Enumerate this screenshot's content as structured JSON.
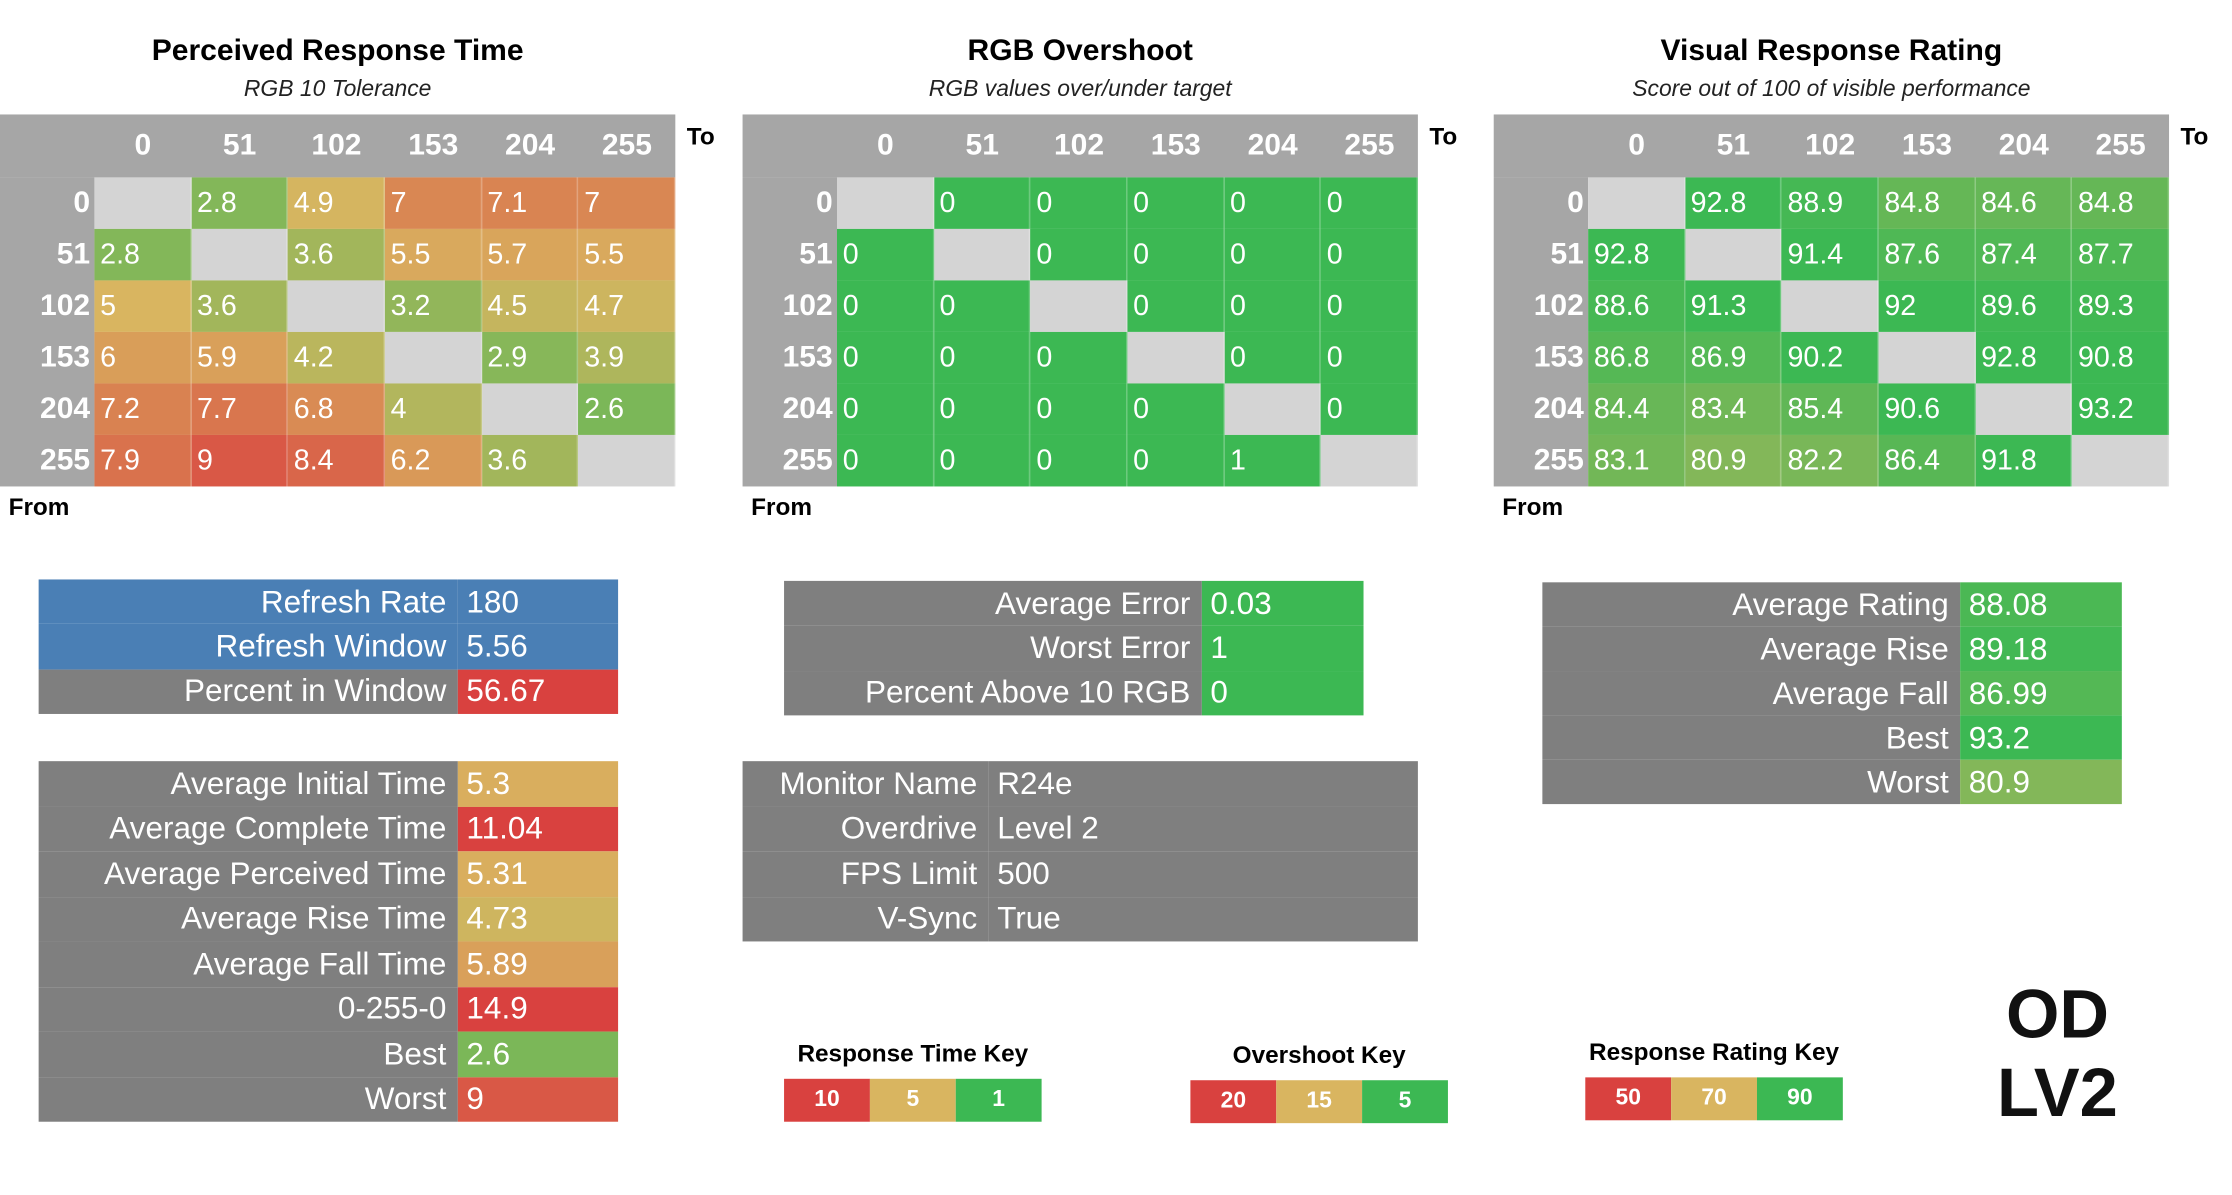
{
  "matrices": [
    {
      "title": "Perceived Response Time",
      "subtitle": "RGB 10 Tolerance",
      "to_label": "To",
      "from_label": "From",
      "columns": [
        0,
        51,
        102,
        153,
        204,
        255
      ],
      "rows": [
        {
          "label": 0,
          "cells": [
            null,
            2.8,
            4.9,
            7,
            7.1,
            7
          ]
        },
        {
          "label": 51,
          "cells": [
            2.8,
            null,
            3.6,
            5.5,
            5.7,
            5.5
          ]
        },
        {
          "label": 102,
          "cells": [
            5,
            3.6,
            null,
            3.2,
            4.5,
            4.7
          ]
        },
        {
          "label": 153,
          "cells": [
            6,
            5.9,
            4.2,
            null,
            2.9,
            3.9
          ]
        },
        {
          "label": 204,
          "cells": [
            7.2,
            7.7,
            6.8,
            4,
            null,
            2.6
          ]
        },
        {
          "label": 255,
          "cells": [
            7.9,
            9,
            8.4,
            6.2,
            3.6,
            null
          ]
        }
      ]
    },
    {
      "title": "RGB Overshoot",
      "subtitle": "RGB values over/under target",
      "to_label": "To",
      "from_label": "From",
      "columns": [
        0,
        51,
        102,
        153,
        204,
        255
      ],
      "rows": [
        {
          "label": 0,
          "cells": [
            null,
            0,
            0,
            0,
            0,
            0
          ]
        },
        {
          "label": 51,
          "cells": [
            0,
            null,
            0,
            0,
            0,
            0
          ]
        },
        {
          "label": 102,
          "cells": [
            0,
            0,
            null,
            0,
            0,
            0
          ]
        },
        {
          "label": 153,
          "cells": [
            0,
            0,
            0,
            null,
            0,
            0
          ]
        },
        {
          "label": 204,
          "cells": [
            0,
            0,
            0,
            0,
            null,
            0
          ]
        },
        {
          "label": 255,
          "cells": [
            0,
            0,
            0,
            0,
            1,
            null
          ]
        }
      ]
    },
    {
      "title": "Visual Response Rating",
      "subtitle": "Score out of 100 of visible performance",
      "to_label": "To",
      "from_label": "From",
      "columns": [
        0,
        51,
        102,
        153,
        204,
        255
      ],
      "rows": [
        {
          "label": 0,
          "cells": [
            null,
            92.8,
            88.9,
            84.8,
            84.6,
            84.8
          ]
        },
        {
          "label": 51,
          "cells": [
            92.8,
            null,
            91.4,
            87.6,
            87.4,
            87.7
          ]
        },
        {
          "label": 102,
          "cells": [
            88.6,
            91.3,
            null,
            92,
            89.6,
            89.3
          ]
        },
        {
          "label": 153,
          "cells": [
            86.8,
            86.9,
            90.2,
            null,
            92.8,
            90.8
          ]
        },
        {
          "label": 204,
          "cells": [
            84.4,
            83.4,
            85.4,
            90.6,
            null,
            93.2
          ]
        },
        {
          "label": 255,
          "cells": [
            83.1,
            80.9,
            82.2,
            86.4,
            91.8,
            null
          ]
        }
      ]
    }
  ],
  "refresh_stats": [
    {
      "label": "Refresh Rate",
      "value": 180
    },
    {
      "label": "Refresh Window",
      "value": 5.56
    },
    {
      "label": "Percent in Window",
      "value": 56.67
    }
  ],
  "time_stats": [
    {
      "label": "Average Initial Time",
      "value": 5.3
    },
    {
      "label": "Average Complete Time",
      "value": 11.04
    },
    {
      "label": "Average Perceived Time",
      "value": 5.31
    },
    {
      "label": "Average Rise Time",
      "value": 4.73
    },
    {
      "label": "Average Fall Time",
      "value": 5.89
    },
    {
      "label": "0-255-0",
      "value": 14.9
    },
    {
      "label": "Best",
      "value": 2.6
    },
    {
      "label": "Worst",
      "value": 9
    }
  ],
  "overshoot_stats": [
    {
      "label": "Average Error",
      "value": 0.03
    },
    {
      "label": "Worst Error",
      "value": 1
    },
    {
      "label": "Percent Above 10 RGB",
      "value": 0
    }
  ],
  "monitor_info": [
    {
      "label": "Monitor Name",
      "value": "R24e"
    },
    {
      "label": "Overdrive",
      "value": "Level 2"
    },
    {
      "label": "FPS Limit",
      "value": 500
    },
    {
      "label": "V-Sync",
      "value": "True"
    }
  ],
  "rating_stats": [
    {
      "label": "Average Rating",
      "value": 88.08
    },
    {
      "label": "Average Rise",
      "value": 89.18
    },
    {
      "label": "Average Fall",
      "value": 86.99
    },
    {
      "label": "Best",
      "value": 93.2
    },
    {
      "label": "Worst",
      "value": 80.9
    }
  ],
  "keys": [
    {
      "title": "Response Time Key",
      "entries": [
        {
          "value": 10,
          "color": "#d9413f"
        },
        {
          "value": 5,
          "color": "#d9b560"
        },
        {
          "value": 1,
          "color": "#3cb853"
        }
      ]
    },
    {
      "title": "Overshoot Key",
      "entries": [
        {
          "value": 20,
          "color": "#d9413f"
        },
        {
          "value": 15,
          "color": "#d9b560"
        },
        {
          "value": 5,
          "color": "#3cb853"
        }
      ]
    },
    {
      "title": "Response Rating Key",
      "entries": [
        {
          "value": 50,
          "color": "#d9413f"
        },
        {
          "value": 70,
          "color": "#d9b560"
        },
        {
          "value": 90,
          "color": "#3cb853"
        }
      ]
    }
  ],
  "mode_label": [
    "OD",
    "LV2"
  ]
}
